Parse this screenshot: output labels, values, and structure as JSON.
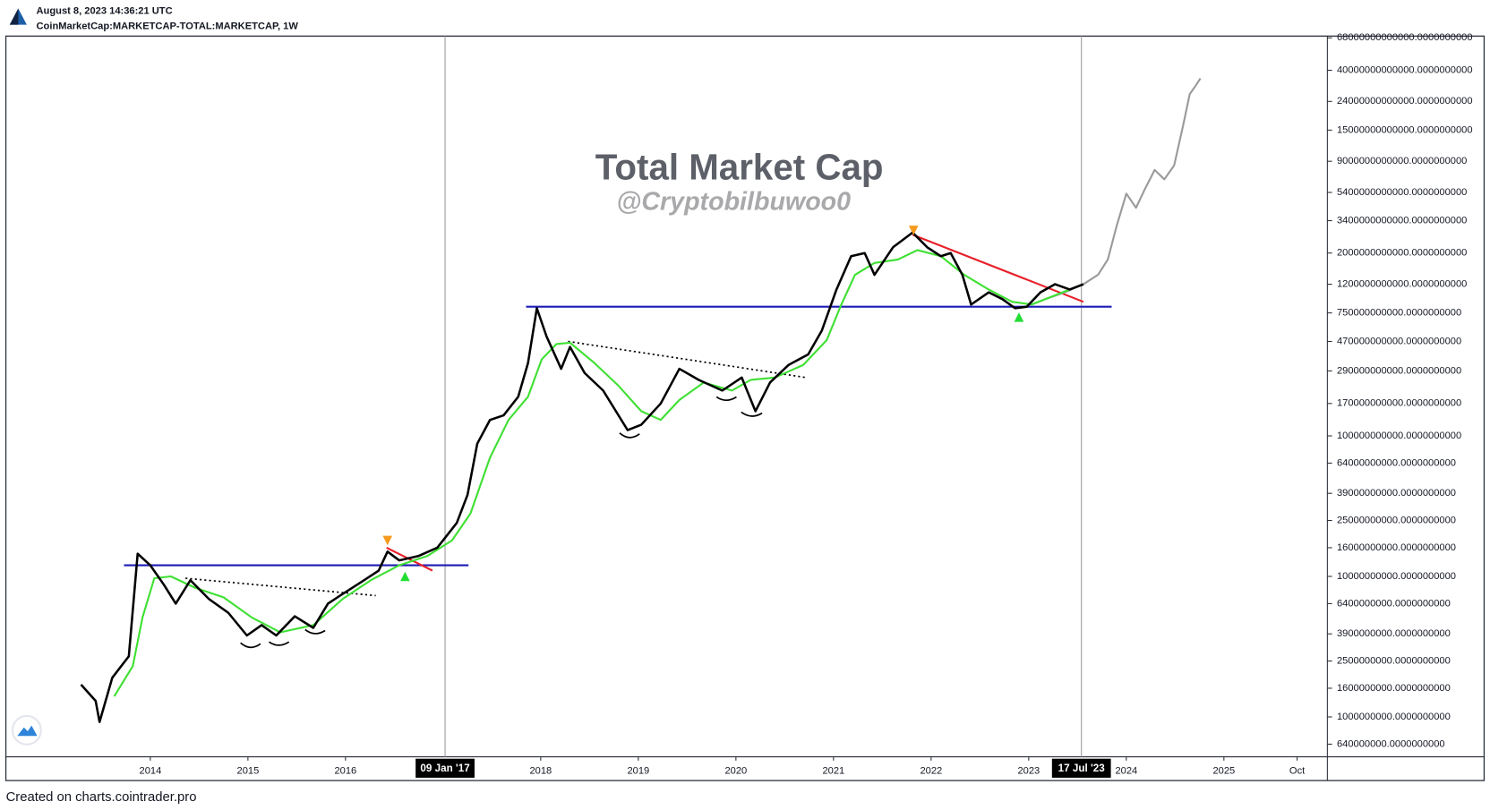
{
  "header": {
    "timestamp": "August 8, 2023 14:36:21 UTC",
    "symbol": "CoinMarketCap:MARKETCAP-TOTAL:MARKETCAP, 1W"
  },
  "footer": "Created on charts.cointrader.pro",
  "chart_data": {
    "type": "line",
    "title": "Total Market Cap",
    "subtitle": "@Cryptobilbuwoo0",
    "log_scale": true,
    "xlim": [
      2012.52,
      2026.06
    ],
    "ylim": [
      520000000,
      70000000000000
    ],
    "xticks": [
      2014,
      2015,
      2016,
      2018,
      2019,
      2020,
      2021,
      2022,
      2023,
      2024,
      2025,
      {
        "value": 2025.75,
        "label": "Oct"
      }
    ],
    "yticks": [
      {
        "value": 68000000000000,
        "label": "68000000000000.0000000000"
      },
      {
        "value": 40000000000000,
        "label": "40000000000000.0000000000"
      },
      {
        "value": 24000000000000,
        "label": "24000000000000.0000000000"
      },
      {
        "value": 15000000000000,
        "label": "15000000000000.0000000000"
      },
      {
        "value": 9000000000000,
        "label": "9000000000000.0000000000"
      },
      {
        "value": 5400000000000,
        "label": "5400000000000.0000000000"
      },
      {
        "value": 3400000000000,
        "label": "3400000000000.0000000000"
      },
      {
        "value": 2000000000000,
        "label": "2000000000000.0000000000"
      },
      {
        "value": 1200000000000,
        "label": "1200000000000.0000000000"
      },
      {
        "value": 750000000000,
        "label": "750000000000.0000000000"
      },
      {
        "value": 470000000000,
        "label": "470000000000.0000000000"
      },
      {
        "value": 290000000000,
        "label": "290000000000.0000000000"
      },
      {
        "value": 170000000000,
        "label": "170000000000.0000000000"
      },
      {
        "value": 100000000000,
        "label": "100000000000.0000000000"
      },
      {
        "value": 64000000000,
        "label": "64000000000.0000000000"
      },
      {
        "value": 39000000000,
        "label": "39000000000.0000000000"
      },
      {
        "value": 25000000000,
        "label": "25000000000.0000000000"
      },
      {
        "value": 16000000000,
        "label": "16000000000.0000000000"
      },
      {
        "value": 10000000000,
        "label": "10000000000.0000000000"
      },
      {
        "value": 6400000000,
        "label": "6400000000.0000000000"
      },
      {
        "value": 3900000000,
        "label": "3900000000.0000000000"
      },
      {
        "value": 2500000000,
        "label": "2500000000.0000000000"
      },
      {
        "value": 1600000000,
        "label": "1600000000.0000000000"
      },
      {
        "value": 1000000000,
        "label": "1000000000.0000000000"
      },
      {
        "value": 640000000,
        "label": "640000000.0000000000"
      }
    ],
    "series": [
      {
        "color": "#000000",
        "width": 2.4,
        "x": [
          2013.29,
          2013.44,
          2013.48,
          2013.61,
          2013.78,
          2013.87,
          2014.0,
          2014.14,
          2014.26,
          2014.41,
          2014.6,
          2014.8,
          2014.99,
          2015.14,
          2015.29,
          2015.48,
          2015.67,
          2015.82,
          2015.97,
          2016.16,
          2016.34,
          2016.43,
          2016.55,
          2016.75,
          2016.94,
          2017.14,
          2017.25,
          2017.35,
          2017.48,
          2017.62,
          2017.77,
          2017.87,
          2017.96,
          2018.06,
          2018.21,
          2018.3,
          2018.45,
          2018.64,
          2018.89,
          2019.03,
          2019.23,
          2019.42,
          2019.62,
          2019.86,
          2020.06,
          2020.2,
          2020.35,
          2020.54,
          2020.74,
          2020.88,
          2021.03,
          2021.18,
          2021.32,
          2021.42,
          2021.61,
          2021.81,
          2021.96,
          2022.1,
          2022.2,
          2022.32,
          2022.41,
          2022.59,
          2022.73,
          2022.86,
          2022.98,
          2023.12,
          2023.27,
          2023.42,
          2023.56
        ],
        "values": [
          1700000000.0,
          1300000000.0,
          920000000.0,
          1900000000.0,
          2700000000.0,
          14500000000.0,
          12000000000.0,
          8700000000.0,
          6400000000.0,
          9400000000.0,
          6900000000.0,
          5500000000.0,
          3800000000.0,
          4500000000.0,
          3800000000.0,
          5200000000.0,
          4300000000.0,
          6400000000.0,
          7500000000.0,
          9100000000.0,
          11000000000.0,
          15000000000.0,
          13000000000.0,
          14000000000.0,
          16000000000.0,
          24000000000.0,
          38000000000.0,
          88000000000.0,
          130000000000.0,
          140000000000.0,
          190000000000.0,
          330000000000.0,
          810000000000.0,
          510000000000.0,
          300000000000.0,
          430000000000.0,
          280000000000.0,
          210000000000.0,
          110000000000.0,
          120000000000.0,
          170000000000.0,
          300000000000.0,
          250000000000.0,
          210000000000.0,
          260000000000.0,
          150000000000.0,
          240000000000.0,
          320000000000.0,
          380000000000.0,
          560000000000.0,
          1100000000000.0,
          1900000000000.0,
          2000000000000.0,
          1400000000000.0,
          2200000000000.0,
          2800000000000.0,
          2200000000000.0,
          1900000000000.0,
          2000000000000.0,
          1400000000000.0,
          860000000000.0,
          1050000000000.0,
          940000000000.0,
          810000000000.0,
          830000000000.0,
          1050000000000.0,
          1200000000000.0,
          1100000000000.0,
          1200000000000.0
        ]
      },
      {
        "color": "#3fe033",
        "width": 2,
        "x": [
          2013.63,
          2013.82,
          2013.92,
          2014.04,
          2014.21,
          2014.46,
          2014.75,
          2015.04,
          2015.33,
          2015.67,
          2015.97,
          2016.26,
          2016.55,
          2016.84,
          2017.09,
          2017.28,
          2017.48,
          2017.67,
          2017.87,
          2018.01,
          2018.16,
          2018.3,
          2018.55,
          2018.79,
          2019.03,
          2019.23,
          2019.42,
          2019.67,
          2019.96,
          2020.15,
          2020.4,
          2020.69,
          2020.93,
          2021.08,
          2021.22,
          2021.42,
          2021.66,
          2021.86,
          2022.1,
          2022.34,
          2022.59,
          2022.83,
          2023.03,
          2023.22,
          2023.42,
          2023.56
        ],
        "values": [
          1400000000.0,
          2300000000.0,
          5100000000.0,
          9700000000.0,
          10000000000.0,
          8300000000.0,
          7100000000.0,
          5100000000.0,
          4000000000.0,
          4500000000.0,
          6900000000.0,
          9400000000.0,
          12000000000.0,
          14000000000.0,
          18000000000.0,
          28000000000.0,
          70000000000.0,
          130000000000.0,
          190000000000.0,
          350000000000.0,
          450000000000.0,
          460000000000.0,
          330000000000.0,
          230000000000.0,
          150000000000.0,
          130000000000.0,
          180000000000.0,
          240000000000.0,
          210000000000.0,
          250000000000.0,
          260000000000.0,
          320000000000.0,
          480000000000.0,
          860000000000.0,
          1400000000000.0,
          1700000000000.0,
          1800000000000.0,
          2100000000000.0,
          1900000000000.0,
          1400000000000.0,
          1100000000000.0,
          900000000000.0,
          860000000000.0,
          970000000000.0,
          1100000000000.0,
          1200000000000.0
        ]
      },
      {
        "color": "#9a9a9a",
        "width": 2,
        "x": [
          2023.03,
          2023.17,
          2023.37,
          2023.56,
          2023.71,
          2023.81,
          2023.9,
          2024.0,
          2024.1,
          2024.19,
          2024.29,
          2024.39,
          2024.49,
          2024.58,
          2024.65,
          2024.71,
          2024.76
        ],
        "values": [
          860000000000.0,
          940000000000.0,
          1050000000000.0,
          1200000000000.0,
          1400000000000.0,
          1800000000000.0,
          3100000000000.0,
          5300000000000.0,
          4200000000000.0,
          5700000000000.0,
          7800000000000.0,
          6700000000000.0,
          8400000000000.0,
          16000000000000.0,
          27000000000000.0,
          31000000000000.0,
          35000000000000.0
        ]
      }
    ],
    "overlays": [
      {
        "color": "#1b1bb5",
        "style": "solid",
        "x": [
          2013.73,
          2017.26
        ],
        "values": [
          12000000000.0,
          12000000000.0
        ]
      },
      {
        "color": "#1b1bb5",
        "style": "solid",
        "x": [
          2017.85,
          2023.85
        ],
        "values": [
          830000000000.0,
          830000000000.0
        ]
      },
      {
        "color": "#e8202a",
        "style": "solid",
        "x": [
          2016.42,
          2016.89
        ],
        "values": [
          16000000000.0,
          11000000000.0
        ]
      },
      {
        "color": "#e8202a",
        "style": "solid",
        "x": [
          2021.81,
          2023.56
        ],
        "values": [
          2700000000000.0,
          900000000000.0
        ]
      },
      {
        "color": "#000000",
        "style": "dotted",
        "x": [
          2014.36,
          2016.31
        ],
        "values": [
          9700000000.0,
          7300000000.0
        ]
      },
      {
        "color": "#000000",
        "style": "dotted",
        "x": [
          2018.28,
          2020.72
        ],
        "values": [
          470000000000.0,
          260000000000.0
        ]
      }
    ],
    "markers": [
      {
        "shape": "down",
        "color": "#f59a1e",
        "x": 2016.43,
        "value": 18000000000.0
      },
      {
        "shape": "down",
        "color": "#f59a1e",
        "x": 2021.82,
        "value": 2900000000000.0
      },
      {
        "shape": "up",
        "color": "#22dd33",
        "x": 2016.61,
        "value": 10000000000.0
      },
      {
        "shape": "up",
        "color": "#22dd33",
        "x": 2022.9,
        "value": 700000000000.0
      }
    ],
    "crosshairs": [
      {
        "x": 2017.02,
        "label": "09 Jan '17"
      },
      {
        "x": 2023.54,
        "label": "17 Jul '23"
      }
    ]
  }
}
